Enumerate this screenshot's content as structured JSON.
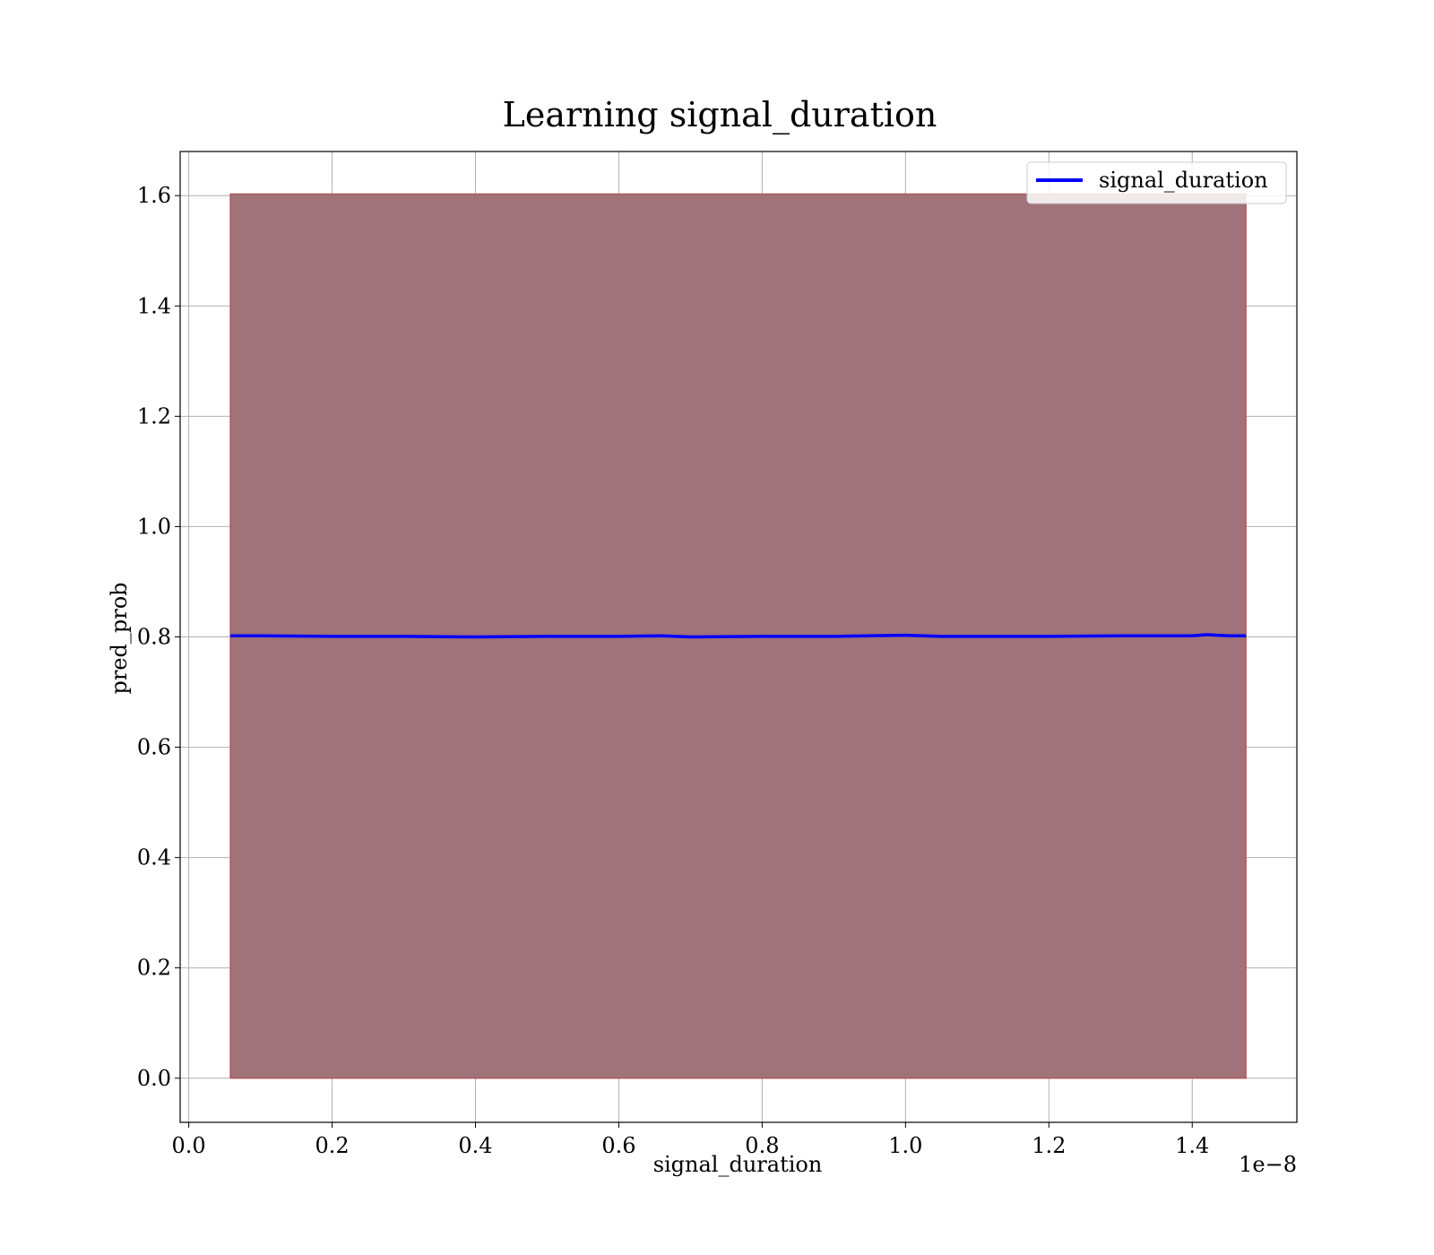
{
  "chart_data": {
    "type": "line",
    "title": "Learning signal_duration",
    "xlabel": "signal_duration",
    "ylabel": "pred_prob",
    "x_offset_label": "1e−8",
    "xlim": [
      -0.012,
      1.546
    ],
    "ylim": [
      -0.08,
      1.68
    ],
    "x_ticks": [
      0.0,
      0.2,
      0.4,
      0.6,
      0.8,
      1.0,
      1.2,
      1.4
    ],
    "x_tick_labels": [
      "0.0",
      "0.2",
      "0.4",
      "0.6",
      "0.8",
      "1.0",
      "1.2",
      "1.4"
    ],
    "y_ticks": [
      0.0,
      0.2,
      0.4,
      0.6,
      0.8,
      1.0,
      1.2,
      1.4,
      1.6
    ],
    "y_tick_labels": [
      "0.0",
      "0.2",
      "0.4",
      "0.6",
      "0.8",
      "1.0",
      "1.2",
      "1.4",
      "1.6"
    ],
    "grid": true,
    "legend_position": "top-right",
    "series": [
      {
        "name": "signal_duration",
        "color": "#0000ff",
        "x": [
          0.058,
          0.1,
          0.2,
          0.3,
          0.4,
          0.5,
          0.6,
          0.66,
          0.7,
          0.8,
          0.9,
          1.0,
          1.05,
          1.1,
          1.2,
          1.3,
          1.4,
          1.42,
          1.45,
          1.475
        ],
        "y": [
          0.802,
          0.802,
          0.801,
          0.801,
          0.8,
          0.801,
          0.801,
          0.802,
          0.8,
          0.801,
          0.801,
          0.803,
          0.801,
          0.801,
          0.801,
          0.802,
          0.802,
          0.804,
          0.802,
          0.802
        ]
      }
    ],
    "band": {
      "color": "#a0727a",
      "edge_color": "#b05050",
      "x": [
        0.058,
        1.475
      ],
      "lower": [
        0.0,
        0.0
      ],
      "upper": [
        1.603,
        1.603
      ]
    }
  }
}
